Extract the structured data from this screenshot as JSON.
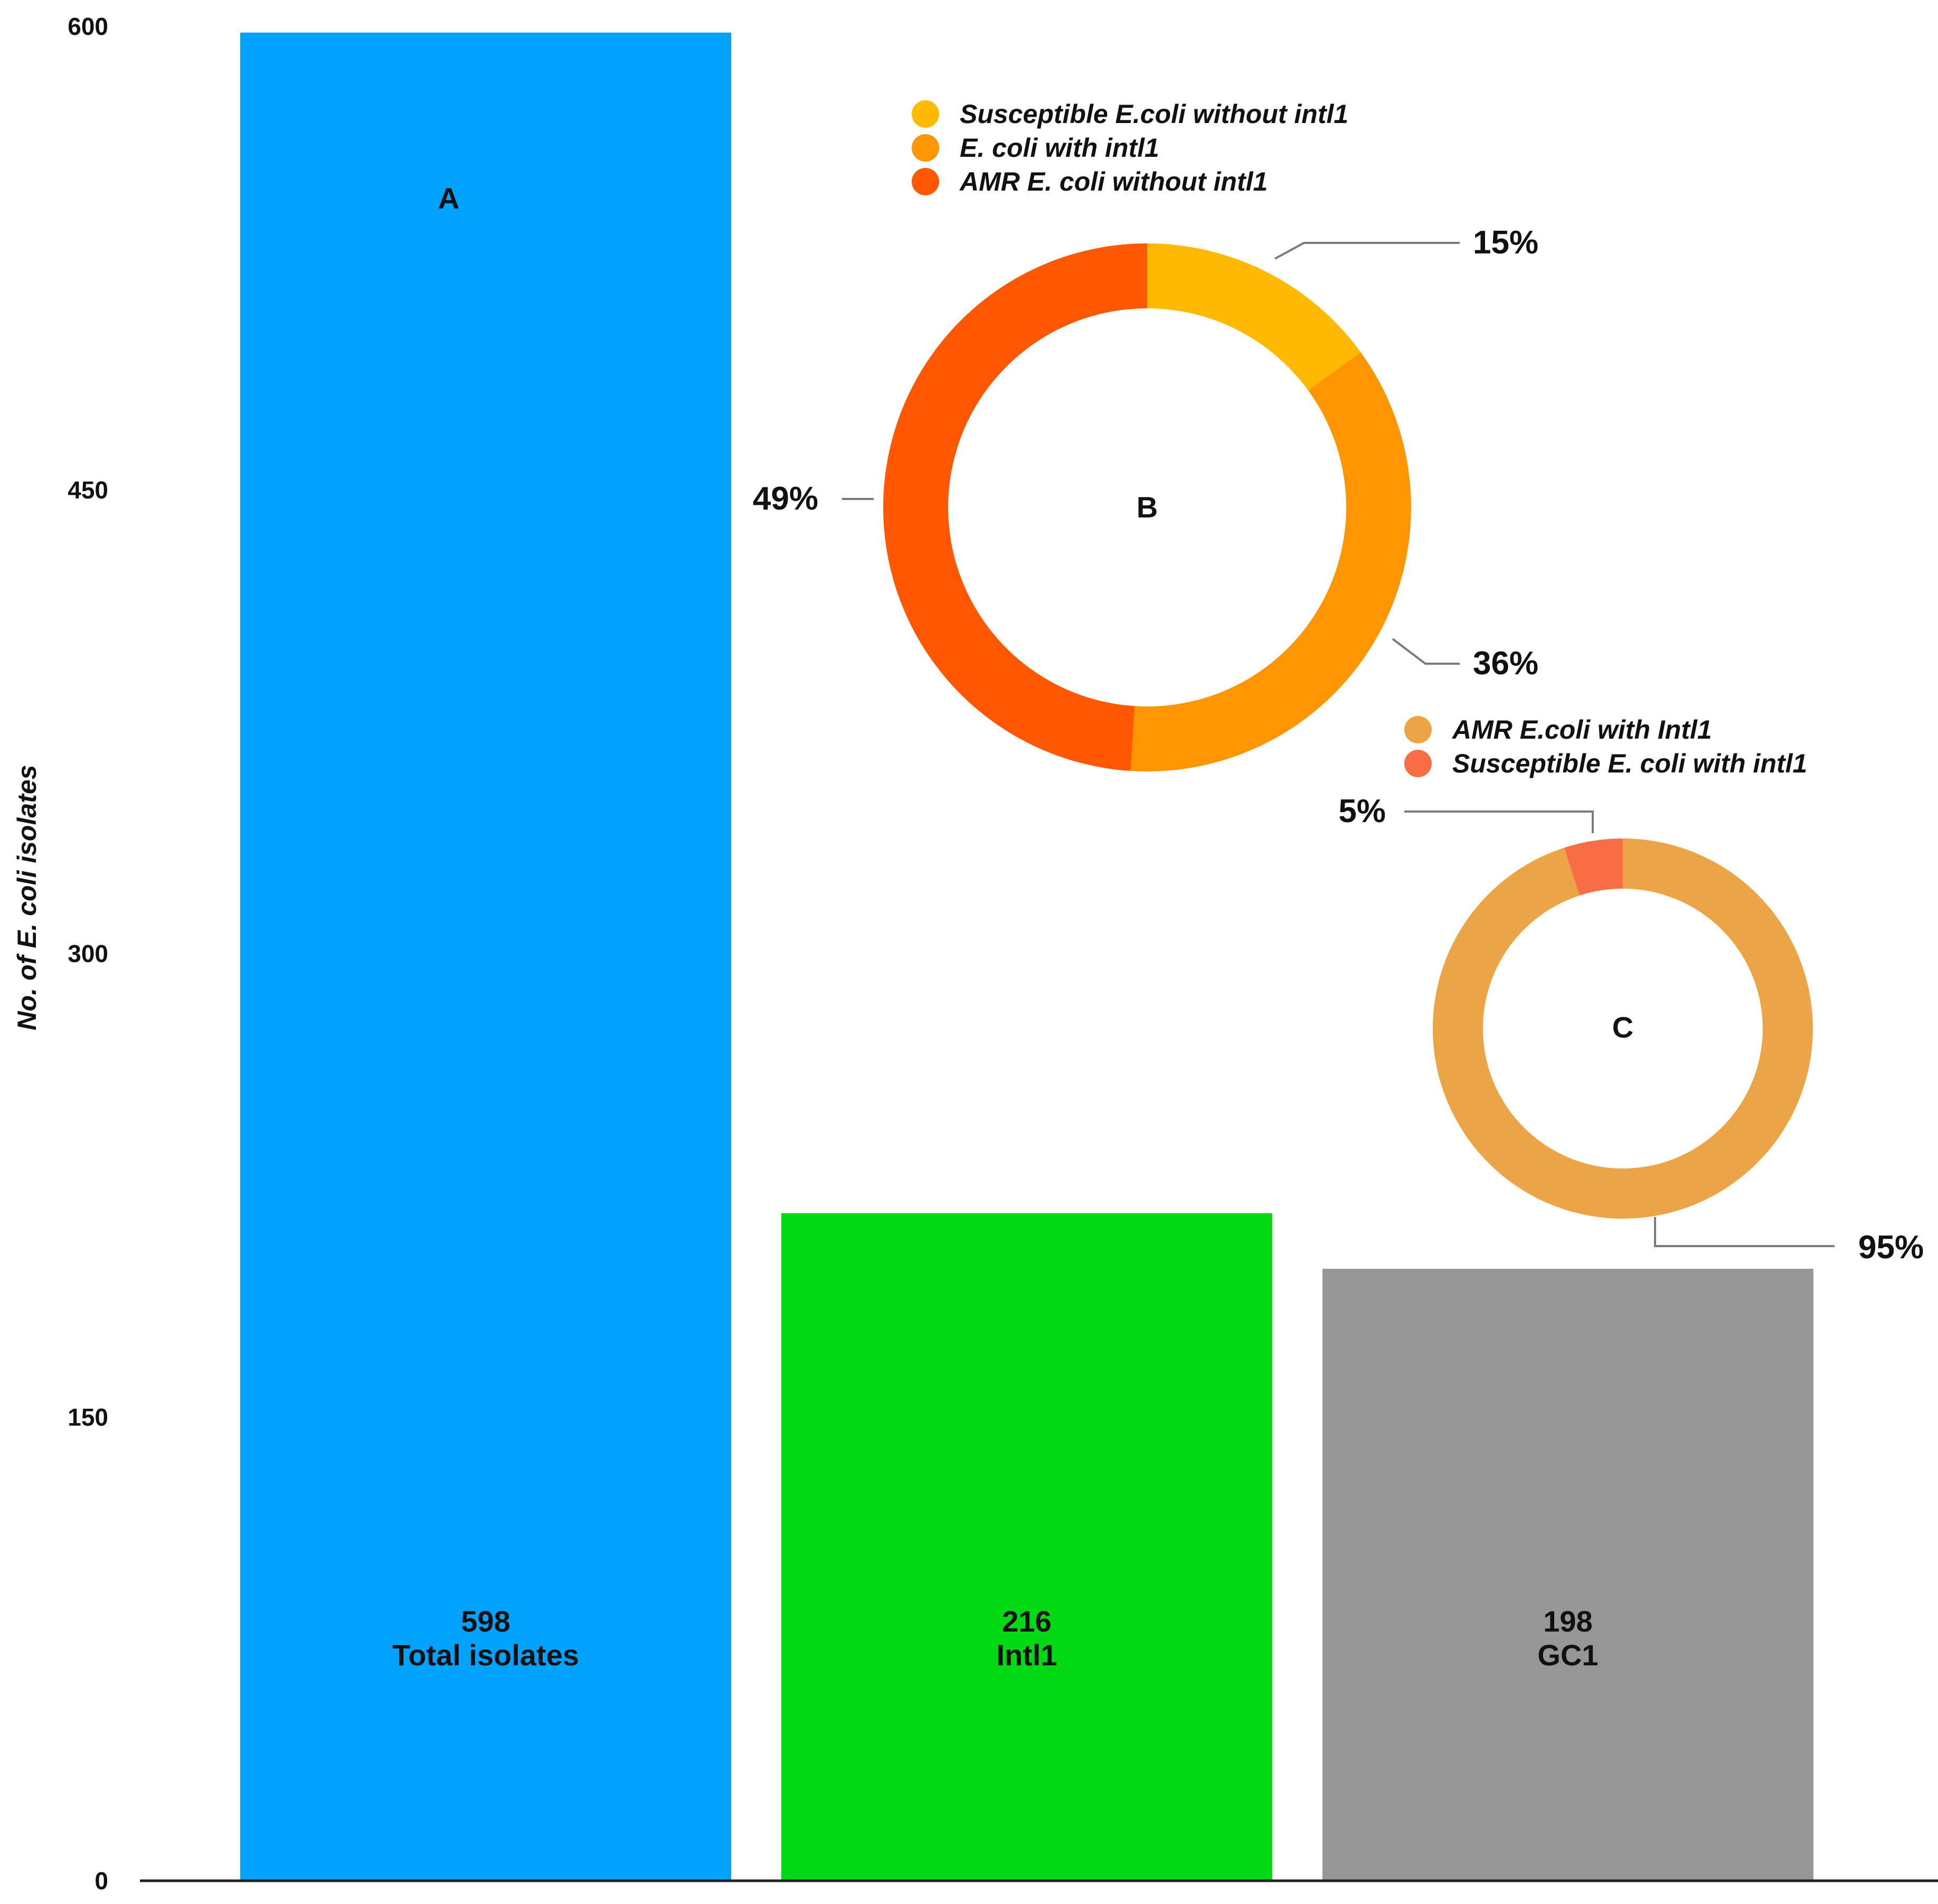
{
  "chart_data": [
    {
      "type": "bar",
      "ylabel": "No. of E. coli isolates",
      "ylim": [
        0,
        600
      ],
      "yticks": [
        "0",
        "150",
        "300",
        "450",
        "600"
      ],
      "categories": [
        "Total isolates",
        "Intl1",
        "GC1"
      ],
      "values": [
        598,
        216,
        198
      ],
      "value_labels": [
        "598",
        "216",
        "198"
      ],
      "panel_label": "A",
      "colors": [
        "#00a2ff",
        "#00d913",
        "#969696"
      ]
    },
    {
      "type": "pie",
      "style": "donut",
      "panel_label": "B",
      "legend": [
        "Susceptible E.coli without intl1",
        "E. coli with intl1",
        "AMR E. coli without intl1"
      ],
      "values": [
        15,
        36,
        49
      ],
      "labels": [
        "15%",
        "36%",
        "49%"
      ],
      "colors": [
        "#ffba00",
        "#ff9500",
        "#ff5800"
      ]
    },
    {
      "type": "pie",
      "style": "donut",
      "panel_label": "C",
      "legend": [
        "AMR E.coli with Intl1",
        "Susceptible E. coli with intl1"
      ],
      "values": [
        95,
        5
      ],
      "labels": [
        "95%",
        "5%"
      ],
      "colors": [
        "#eca447",
        "#f86d45"
      ]
    }
  ],
  "colors": {
    "axis": "#222222",
    "leader": "#7a7a7a"
  }
}
